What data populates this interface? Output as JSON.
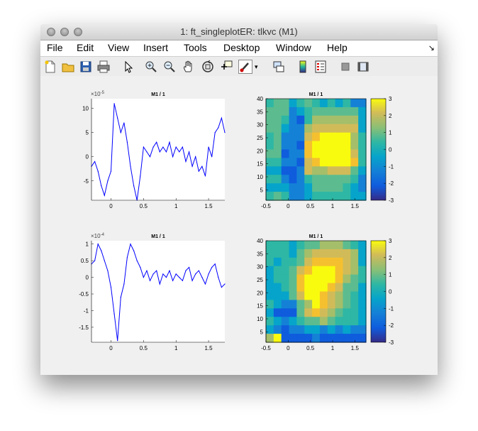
{
  "window": {
    "title": "1: ft_singleplotER: tlkvc (M1)"
  },
  "menu": [
    "File",
    "Edit",
    "View",
    "Insert",
    "Tools",
    "Desktop",
    "Window",
    "Help"
  ],
  "menu_corner_icon": "dock-arrow-icon",
  "toolbar": {
    "icons": [
      "new-figure-icon",
      "open-file-icon",
      "save-icon",
      "print-icon",
      "pointer-icon",
      "zoom-in-icon",
      "zoom-out-icon",
      "pan-icon",
      "rotate-3d-icon",
      "data-cursor-icon",
      "brush-icon",
      "brush-dropdown-icon",
      "link-plot-icon",
      "colorbar-icon",
      "legend-icon",
      "hide-plot-tools-icon",
      "show-plot-tools-icon"
    ]
  },
  "colors": {
    "line": "#0000ff",
    "parula_low": "#352a87",
    "parula_high": "#f9fb0e"
  },
  "chart_data": [
    {
      "type": "line",
      "title": "M1 / 1",
      "exponent_label": "×10",
      "exponent_power": "-5",
      "xlim": [
        -0.3,
        1.75
      ],
      "ylim": [
        -9,
        12
      ],
      "xticks": [
        0,
        0.5,
        1,
        1.5
      ],
      "xtick_labels": [
        "0",
        "0.5",
        "1",
        "1.5"
      ],
      "yticks": [
        -5,
        0,
        5,
        10
      ],
      "ytick_labels": [
        "-5",
        "0",
        "5",
        "10"
      ],
      "x": [
        -0.3,
        -0.25,
        -0.2,
        -0.15,
        -0.1,
        -0.05,
        0,
        0.05,
        0.1,
        0.15,
        0.2,
        0.25,
        0.3,
        0.35,
        0.4,
        0.45,
        0.5,
        0.55,
        0.6,
        0.65,
        0.7,
        0.75,
        0.8,
        0.85,
        0.9,
        0.95,
        1.0,
        1.05,
        1.1,
        1.15,
        1.2,
        1.25,
        1.3,
        1.35,
        1.4,
        1.45,
        1.5,
        1.55,
        1.6,
        1.65,
        1.7,
        1.75
      ],
      "y": [
        -2,
        -1,
        -3,
        -6,
        -8,
        -5,
        -3,
        11,
        8,
        5,
        7,
        3,
        -2,
        -6,
        -9,
        -4,
        2,
        1,
        0,
        2,
        3,
        1,
        2,
        1,
        3,
        0,
        2,
        1,
        2,
        -1,
        1,
        -2,
        0,
        -3,
        -2,
        -4,
        2,
        0,
        5,
        6,
        8,
        5
      ]
    },
    {
      "type": "heatmap",
      "title": "M1 / 1",
      "xlim": [
        -0.5,
        1.75
      ],
      "ylim": [
        1,
        40
      ],
      "xticks": [
        -0.5,
        0,
        0.5,
        1,
        1.5
      ],
      "xtick_labels": [
        "-0.5",
        "0",
        "0.5",
        "1",
        "1.5"
      ],
      "yticks": [
        5,
        10,
        15,
        20,
        25,
        30,
        35,
        40
      ],
      "ytick_labels": [
        "5",
        "10",
        "15",
        "20",
        "25",
        "30",
        "35",
        "40"
      ],
      "clim": [
        -3,
        3
      ],
      "cticks": [
        3,
        2,
        1,
        0,
        -1,
        -2,
        -3
      ],
      "ctick_labels": [
        "3",
        "2",
        "1",
        "0",
        "-1",
        "-2",
        "-3"
      ],
      "rows": [
        "4553454343422",
        "5552345555553",
        "5542146666663",
        "5532267777773",
        "4522278999964",
        "4522189999964",
        "5512289999974",
        "4422178999984",
        "3311276677753",
        "4421245555542",
        "3332235555432",
        "4542234444433"
      ]
    },
    {
      "type": "line",
      "title": "M1 / 1",
      "exponent_label": "×10",
      "exponent_power": "-4",
      "xlim": [
        -0.3,
        1.75
      ],
      "ylim": [
        -1.95,
        1.1
      ],
      "xticks": [
        0,
        0.5,
        1,
        1.5
      ],
      "xtick_labels": [
        "0",
        "0.5",
        "1",
        "1.5"
      ],
      "yticks": [
        -1.5,
        -1,
        -0.5,
        0,
        0.5,
        1
      ],
      "ytick_labels": [
        "-1.5",
        "-1",
        "-0.5",
        "0",
        "0.5",
        "1"
      ],
      "x": [
        -0.3,
        -0.25,
        -0.2,
        -0.15,
        -0.1,
        -0.05,
        0,
        0.05,
        0.1,
        0.15,
        0.2,
        0.25,
        0.3,
        0.35,
        0.4,
        0.45,
        0.5,
        0.55,
        0.6,
        0.65,
        0.7,
        0.75,
        0.8,
        0.85,
        0.9,
        0.95,
        1.0,
        1.05,
        1.1,
        1.15,
        1.2,
        1.25,
        1.3,
        1.35,
        1.4,
        1.45,
        1.5,
        1.55,
        1.6,
        1.65,
        1.7,
        1.75
      ],
      "y": [
        0.4,
        0.5,
        1.0,
        0.8,
        0.5,
        0.2,
        -0.3,
        -1.1,
        -1.9,
        -0.6,
        -0.2,
        0.6,
        1.0,
        0.8,
        0.5,
        0.3,
        0.0,
        0.2,
        -0.1,
        0.1,
        0.2,
        -0.2,
        0.1,
        0.0,
        0.2,
        -0.1,
        0.1,
        0.0,
        -0.1,
        0.2,
        0.3,
        -0.1,
        0.1,
        0.2,
        0.0,
        -0.2,
        0.1,
        0.3,
        0.4,
        0.0,
        -0.3,
        -0.2
      ]
    },
    {
      "type": "heatmap",
      "title": "M1 / 1",
      "xlim": [
        -0.5,
        1.75
      ],
      "ylim": [
        1,
        40
      ],
      "xticks": [
        -0.5,
        0,
        0.5,
        1,
        1.5
      ],
      "xtick_labels": [
        "-0.5",
        "0",
        "0.5",
        "1",
        "1.5"
      ],
      "yticks": [
        5,
        10,
        15,
        20,
        25,
        30,
        35,
        40
      ],
      "ytick_labels": [
        "5",
        "10",
        "15",
        "20",
        "25",
        "30",
        "35",
        "40"
      ],
      "clim": [
        -3,
        3
      ],
      "cticks": [
        3,
        2,
        1,
        0,
        -1,
        -2,
        -3
      ],
      "ctick_labels": [
        "3",
        "2",
        "1",
        "0",
        "-1",
        "-2",
        "-3"
      ],
      "rows": [
        "4443455666543",
        "4443567777763",
        "4344578888763",
        "3445789998764",
        "3445899998654",
        "3345899987553",
        "3335799876543",
        "4322569876543",
        "3111578765443",
        "4323455654443",
        "3212233232322",
        "6911112111111"
      ]
    }
  ]
}
